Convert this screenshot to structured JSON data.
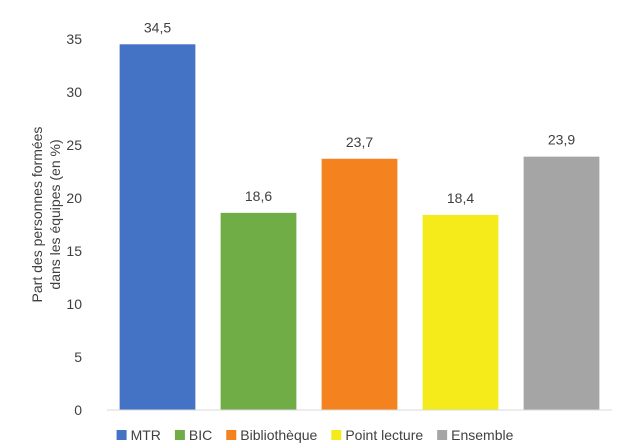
{
  "chart_data": {
    "type": "bar",
    "title": "",
    "xlabel": "",
    "ylabel_lines": [
      "Part des personnes formées",
      "dans les équipes (en %)"
    ],
    "categories": [
      "MTR",
      "BIC",
      "Bibliothèque",
      "Point lecture",
      "Ensemble"
    ],
    "values": [
      34.5,
      18.6,
      23.7,
      18.4,
      23.9
    ],
    "value_labels": [
      "34,5",
      "18,6",
      "23,7",
      "18,4",
      "23,9"
    ],
    "colors": [
      "#4472c4",
      "#70ad47",
      "#f4821f",
      "#f5ea1a",
      "#a5a5a5"
    ],
    "ylim": [
      0,
      35
    ],
    "yticks": [
      0,
      5,
      10,
      15,
      20,
      25,
      30,
      35
    ],
    "grid": false,
    "legend_position": "bottom"
  }
}
